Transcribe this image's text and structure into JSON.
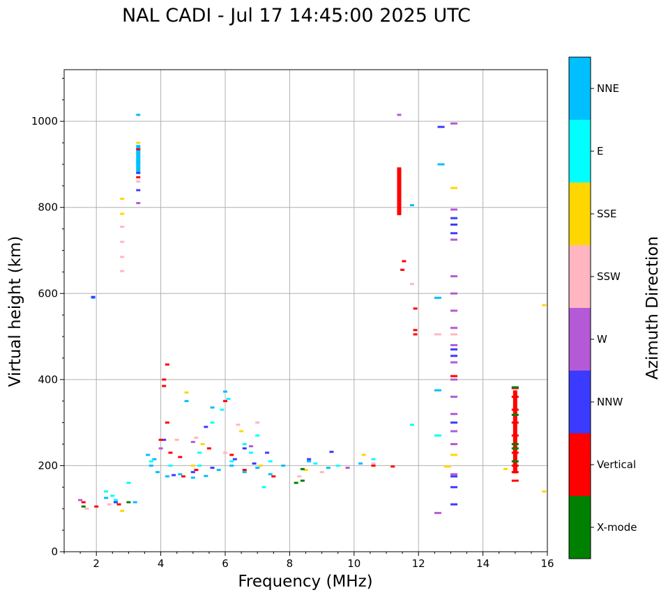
{
  "chart_data": {
    "type": "scatter",
    "title": "NAL CADI - Jul 17 14:45:00 2025 UTC",
    "xlabel": "Frequency (MHz)",
    "ylabel": "Virtual height (km)",
    "xlim": [
      1,
      16
    ],
    "ylim": [
      0,
      1120
    ],
    "xticks": [
      2,
      4,
      6,
      8,
      10,
      12,
      14,
      16
    ],
    "yticks": [
      0,
      200,
      400,
      600,
      800,
      1000
    ],
    "grid": true,
    "colorbar": {
      "label": "Azimuth Direction",
      "categories": [
        {
          "name": "X-mode",
          "color": "#008000"
        },
        {
          "name": "Vertical",
          "color": "#ff0000"
        },
        {
          "name": "NNW",
          "color": "#3b3bff"
        },
        {
          "name": "W",
          "color": "#b45ad6"
        },
        {
          "name": "SSW",
          "color": "#ffb6c1"
        },
        {
          "name": "SSE",
          "color": "#ffd700"
        },
        {
          "name": "E",
          "color": "#00ffff"
        },
        {
          "name": "NNE",
          "color": "#00bfff"
        }
      ]
    },
    "series": [
      {
        "name": "NNE",
        "color": "#00bfff",
        "points": [
          [
            3.3,
            1015
          ],
          [
            3.3,
            905
          ],
          [
            1.9,
            590
          ],
          [
            3.6,
            225
          ],
          [
            3.8,
            215
          ],
          [
            3.7,
            200
          ],
          [
            3.9,
            185
          ],
          [
            4.2,
            175
          ],
          [
            4.6,
            180
          ],
          [
            5.0,
            172
          ],
          [
            5.4,
            176
          ],
          [
            5.8,
            190
          ],
          [
            6.2,
            200
          ],
          [
            6.6,
            185
          ],
          [
            7.0,
            195
          ],
          [
            7.4,
            180
          ],
          [
            7.8,
            200
          ],
          [
            8.6,
            210
          ],
          [
            9.2,
            195
          ],
          [
            10.2,
            205
          ],
          [
            12.6,
            590
          ],
          [
            12.6,
            375
          ],
          [
            12.7,
            900
          ],
          [
            11.8,
            805
          ],
          [
            4.8,
            350
          ],
          [
            5.6,
            335
          ],
          [
            6.0,
            372
          ],
          [
            3.2,
            115
          ],
          [
            2.3,
            125
          ]
        ]
      },
      {
        "name": "E",
        "color": "#00ffff",
        "points": [
          [
            2.3,
            140
          ],
          [
            2.5,
            130
          ],
          [
            2.6,
            120
          ],
          [
            3.0,
            160
          ],
          [
            3.7,
            210
          ],
          [
            4.3,
            200
          ],
          [
            5.2,
            230
          ],
          [
            5.6,
            300
          ],
          [
            5.9,
            330
          ],
          [
            6.1,
            355
          ],
          [
            6.6,
            250
          ],
          [
            7.0,
            270
          ],
          [
            6.2,
            210
          ],
          [
            6.8,
            230
          ],
          [
            7.4,
            210
          ],
          [
            8.8,
            205
          ],
          [
            9.5,
            200
          ],
          [
            10.6,
            215
          ],
          [
            12.6,
            270
          ],
          [
            11.8,
            295
          ],
          [
            5.2,
            200
          ],
          [
            7.2,
            150
          ]
        ]
      },
      {
        "name": "SSE",
        "color": "#ffd700",
        "points": [
          [
            2.8,
            820
          ],
          [
            2.8,
            785
          ],
          [
            3.3,
            950
          ],
          [
            4.8,
            370
          ],
          [
            5.3,
            250
          ],
          [
            6.5,
            280
          ],
          [
            7.1,
            200
          ],
          [
            10.3,
            225
          ],
          [
            13.1,
            845
          ],
          [
            13.1,
            225
          ],
          [
            12.9,
            198
          ],
          [
            14.7,
            192
          ],
          [
            15.9,
            573
          ],
          [
            15.9,
            140
          ],
          [
            2.8,
            95
          ],
          [
            5.0,
            200
          ],
          [
            8.5,
            190
          ]
        ]
      },
      {
        "name": "SSW",
        "color": "#ffb6c1",
        "points": [
          [
            2.8,
            755
          ],
          [
            2.8,
            720
          ],
          [
            2.8,
            685
          ],
          [
            2.8,
            652
          ],
          [
            3.3,
            860
          ],
          [
            4.5,
            260
          ],
          [
            5.1,
            265
          ],
          [
            6.4,
            295
          ],
          [
            7.0,
            300
          ],
          [
            8.3,
            175
          ],
          [
            9.0,
            185
          ],
          [
            10.6,
            205
          ],
          [
            11.8,
            622
          ],
          [
            12.6,
            505
          ],
          [
            13.1,
            505
          ],
          [
            1.7,
            100
          ],
          [
            2.4,
            110
          ],
          [
            6.0,
            230
          ]
        ]
      },
      {
        "name": "W",
        "color": "#b45ad6",
        "points": [
          [
            3.3,
            810
          ],
          [
            5.0,
            255
          ],
          [
            6.8,
            245
          ],
          [
            11.4,
            1015
          ],
          [
            13.1,
            995
          ],
          [
            13.1,
            795
          ],
          [
            13.1,
            725
          ],
          [
            13.1,
            640
          ],
          [
            13.1,
            600
          ],
          [
            13.1,
            560
          ],
          [
            13.1,
            520
          ],
          [
            13.1,
            480
          ],
          [
            13.1,
            440
          ],
          [
            13.1,
            400
          ],
          [
            13.1,
            360
          ],
          [
            13.1,
            320
          ],
          [
            13.1,
            280
          ],
          [
            13.1,
            250
          ],
          [
            13.1,
            180
          ],
          [
            12.6,
            90
          ],
          [
            1.5,
            120
          ],
          [
            9.8,
            195
          ],
          [
            4.0,
            240
          ]
        ]
      },
      {
        "name": "NNW",
        "color": "#3b3bff",
        "points": [
          [
            3.3,
            880
          ],
          [
            3.3,
            840
          ],
          [
            4.1,
            260
          ],
          [
            4.4,
            178
          ],
          [
            5.0,
            185
          ],
          [
            5.6,
            195
          ],
          [
            6.3,
            215
          ],
          [
            6.6,
            240
          ],
          [
            6.9,
            205
          ],
          [
            7.3,
            230
          ],
          [
            8.6,
            215
          ],
          [
            9.3,
            232
          ],
          [
            12.7,
            987
          ],
          [
            13.1,
            775
          ],
          [
            13.1,
            760
          ],
          [
            13.1,
            740
          ],
          [
            13.1,
            470
          ],
          [
            13.1,
            455
          ],
          [
            13.1,
            300
          ],
          [
            13.1,
            175
          ],
          [
            13.1,
            150
          ],
          [
            13.1,
            110
          ],
          [
            1.9,
            592
          ],
          [
            5.4,
            290
          ],
          [
            2.6,
            115
          ]
        ]
      },
      {
        "name": "Vertical",
        "color": "#ff0000",
        "points": [
          [
            3.3,
            935
          ],
          [
            3.3,
            870
          ],
          [
            4.1,
            400
          ],
          [
            4.1,
            385
          ],
          [
            4.2,
            300
          ],
          [
            4.0,
            260
          ],
          [
            4.3,
            230
          ],
          [
            4.6,
            220
          ],
          [
            5.1,
            190
          ],
          [
            5.5,
            240
          ],
          [
            6.2,
            225
          ],
          [
            6.6,
            190
          ],
          [
            7.5,
            175
          ],
          [
            10.6,
            200
          ],
          [
            11.2,
            198
          ],
          [
            11.55,
            675
          ],
          [
            11.5,
            655
          ],
          [
            11.9,
            565
          ],
          [
            11.9,
            515
          ],
          [
            11.9,
            505
          ],
          [
            13.1,
            408
          ],
          [
            15.0,
            380
          ],
          [
            15.0,
            360
          ],
          [
            15.0,
            330
          ],
          [
            15.0,
            300
          ],
          [
            15.0,
            270
          ],
          [
            15.0,
            230
          ],
          [
            15.0,
            200
          ],
          [
            15.0,
            185
          ],
          [
            15.0,
            165
          ],
          [
            4.2,
            435
          ],
          [
            1.6,
            115
          ],
          [
            2.0,
            105
          ],
          [
            2.7,
            110
          ],
          [
            4.7,
            175
          ],
          [
            6.0,
            350
          ]
        ]
      },
      {
        "name": "X-mode",
        "color": "#008000",
        "points": [
          [
            1.6,
            105
          ],
          [
            3.0,
            115
          ],
          [
            8.4,
            165
          ],
          [
            8.2,
            160
          ],
          [
            8.4,
            192
          ],
          [
            15.0,
            382
          ],
          [
            15.0,
            318
          ],
          [
            15.0,
            250
          ],
          [
            15.0,
            240
          ],
          [
            15.0,
            210
          ]
        ]
      }
    ],
    "bars": [
      {
        "name": "Vertical",
        "color": "#ff0000",
        "x": 11.4,
        "y0": 782,
        "y1": 893
      },
      {
        "name": "Vertical",
        "color": "#ff0000",
        "x": 15.0,
        "y0": 182,
        "y1": 375
      },
      {
        "name": "NNE",
        "color": "#00bfff",
        "x": 3.3,
        "y0": 880,
        "y1": 945
      }
    ]
  }
}
